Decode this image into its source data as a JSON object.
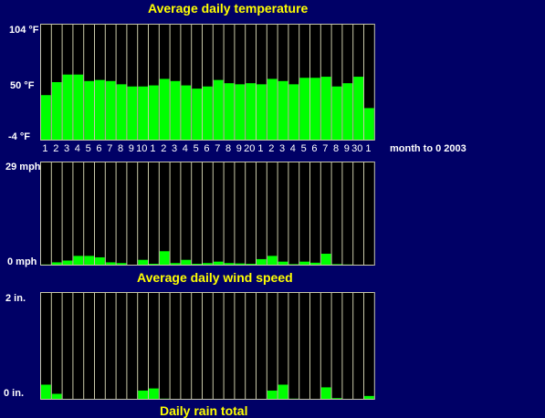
{
  "chart_data": [
    {
      "type": "bar",
      "title": "Average daily temperature",
      "ylim": [
        -4,
        104
      ],
      "ytick_labels": [
        "104 °F",
        "50 °F",
        "-4 °F"
      ],
      "x_tick_labels": [
        "1",
        "2",
        "3",
        "4",
        "5",
        "6",
        "7",
        "8",
        "9",
        "10",
        "1",
        "2",
        "3",
        "4",
        "5",
        "6",
        "7",
        "8",
        "9",
        "20",
        "1",
        "2",
        "3",
        "4",
        "5",
        "6",
        "7",
        "8",
        "9",
        "30",
        "1"
      ],
      "x_caption": "month to 0 2003",
      "values": [
        38,
        50,
        57,
        57,
        51,
        52,
        51,
        48,
        46,
        46,
        47,
        53,
        51,
        47,
        44,
        46,
        52,
        49,
        48,
        49,
        48,
        53,
        51,
        48,
        54,
        54,
        55,
        46,
        49,
        55,
        26
      ],
      "bar_color": "#00ff00"
    },
    {
      "type": "bar",
      "title": "Average daily wind speed",
      "ylim": [
        0,
        29
      ],
      "ytick_labels": [
        "29 mph",
        "0 mph"
      ],
      "values": [
        0.3,
        0.9,
        1.4,
        2.7,
        2.7,
        2.3,
        0.9,
        0.7,
        0.2,
        1.6,
        0.5,
        4.0,
        0.7,
        1.6,
        0.5,
        0.7,
        1.1,
        0.7,
        0.6,
        0.5,
        1.8,
        2.7,
        1.1,
        0.4,
        1.1,
        0.8,
        3.3,
        0.4,
        0.3,
        0.2,
        0
      ],
      "bar_color": "#00ff00"
    },
    {
      "type": "bar",
      "title": "Daily rain total",
      "ylim": [
        0,
        2
      ],
      "ytick_labels": [
        "2 in.",
        "0 in."
      ],
      "values": [
        0.28,
        0.11,
        0,
        0,
        0,
        0,
        0,
        0,
        0,
        0.17,
        0.21,
        0.02,
        0,
        0,
        0,
        0,
        0,
        0,
        0,
        0,
        0,
        0.17,
        0.28,
        0.02,
        0,
        0,
        0.23,
        0.03,
        0,
        0,
        0.07
      ],
      "bar_color": "#00ff00"
    }
  ]
}
